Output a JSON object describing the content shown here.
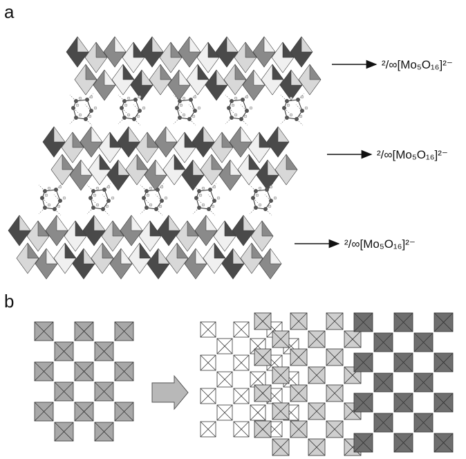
{
  "panels": [
    {
      "label": "a",
      "annotations": [
        "²/∞[Mo₅O₁₆]²⁻",
        "²/∞[Mo₅O₁₆]²⁻",
        "²/∞[Mo₅O₁₆]²⁻"
      ]
    },
    {
      "label": "b"
    }
  ]
}
